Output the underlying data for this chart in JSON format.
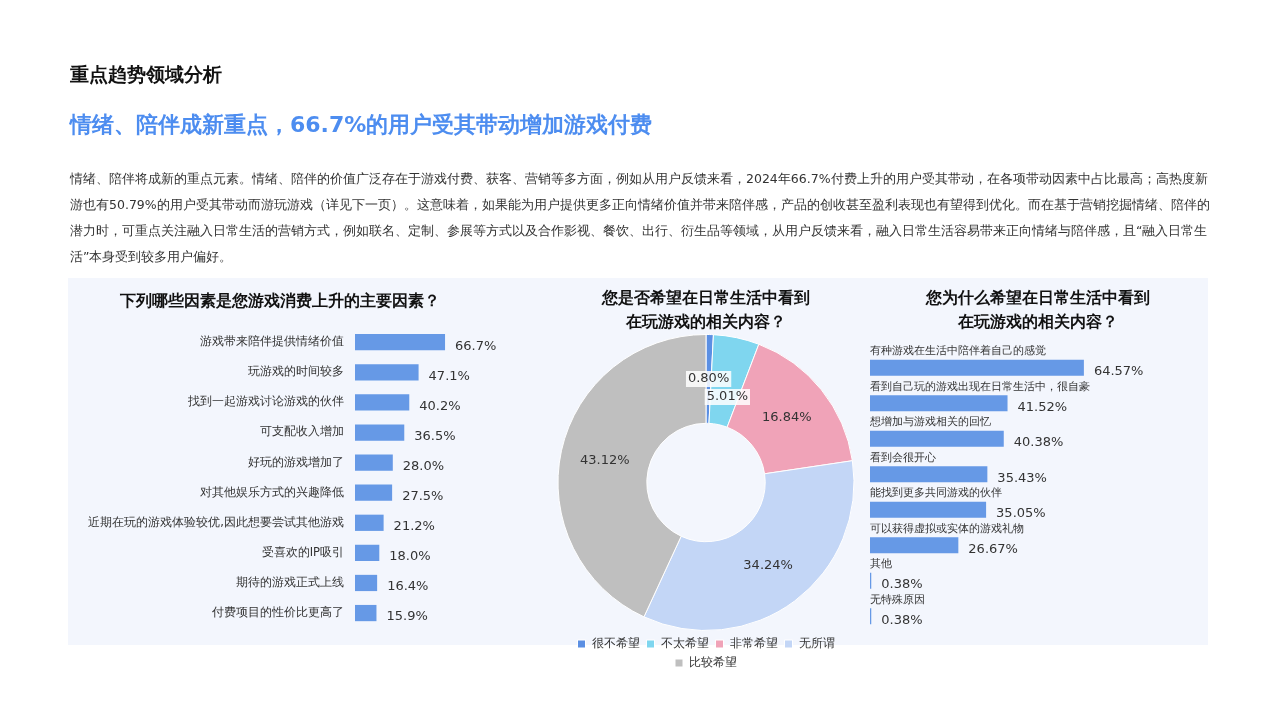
{
  "chart_data": [
    {
      "type": "other",
      "title": "重点趋势领域分析",
      "subtitle": "情绪、陪伴成新重点，66.7%的用户受其带动增加游戏付费",
      "annotations": [
        "情绪、陪伴将成新的重点元素。情绪、陪伴的价值广泛存在于游戏付费、获客、营销等多方面，例如从用户反馈来看，2024年66.7%付费上升的用户受其带动，在各项带动因素中占比最高；高热度新游也有50.79%的用户受其带动而游玩游戏（详见下一页）。这意味着，如果能为用户提供更多正向情绪价值并带来陪伴感，产品的创收甚至盈利表现也有望得到优化。而在基于营销挖掘情绪、陪伴的潜力时，可重点关注融入日常生活的营销方式，例如联名、定制、参展等方式以及合作影视、餐饮、出行、衍生品等领域，从用户反馈来看，融入日常生活容易带来正向情绪与陪伴感，且“融入日常生活”本身受到较多用户偏好。"
      ]
    },
    {
      "type": "bar",
      "orientation": "horizontal",
      "title": "下列哪些因素是您游戏消费上升的主要因素？",
      "categories": [
        "游戏带来陪伴提供情绪价值",
        "玩游戏的时间较多",
        "找到一起游戏讨论游戏的伙伴",
        "可支配收入增加",
        "好玩的游戏增加了",
        "对其他娱乐方式的兴趣降低",
        "近期在玩的游戏体验较优,因此想要尝试其他游戏",
        "受喜欢的IP吸引",
        "期待的游戏正式上线",
        "付费项目的性价比更高了"
      ],
      "values": [
        66.7,
        47.1,
        40.2,
        36.5,
        28.0,
        27.5,
        21.2,
        18.0,
        16.4,
        15.9
      ],
      "color": "#6699e6",
      "value_labels": [
        "66.7%",
        "47.1%",
        "40.2%",
        "36.5%",
        "28.0%",
        "27.5%",
        "21.2%",
        "18.0%",
        "16.4%",
        "15.9%"
      ],
      "grid": false,
      "legend": false,
      "tick_labels": "y"
    },
    {
      "type": "donut",
      "title": "您是否希望在日常生活中看到在玩游戏的相关内容？",
      "categories": [
        "很不希望",
        "不太希望",
        "非常希望",
        "无所谓",
        "比较希望"
      ],
      "values": [
        0.8,
        5.01,
        16.84,
        34.24,
        43.12
      ],
      "colors": [
        "#5b8fe3",
        "#7fd6ef",
        "#f0a3b8",
        "#c3d6f6",
        "#bfbfbf"
      ],
      "value_labels": [
        "0.80%",
        "5.01%",
        "16.84%",
        "34.24%",
        "43.12%"
      ],
      "legend": "bottom"
    },
    {
      "type": "bar",
      "orientation": "horizontal",
      "title": "您为什么希望在日常生活中看到在玩游戏的相关内容？",
      "categories": [
        "有种游戏在生活中陪伴着自己的感觉",
        "看到自己玩的游戏出现在日常生活中，很自豪",
        "想增加与游戏相关的回忆",
        "看到会很开心",
        "能找到更多共同游戏的伙伴",
        "可以获得虚拟或实体的游戏礼物",
        "其他",
        "无特殊原因"
      ],
      "values": [
        64.57,
        41.52,
        40.38,
        35.43,
        35.05,
        26.67,
        0.38,
        0.38
      ],
      "color": "#6699e6",
      "value_labels": [
        "64.57%",
        "41.52%",
        "40.38%",
        "35.43%",
        "35.05%",
        "26.67%",
        "0.38%",
        "0.38%"
      ],
      "grid": false,
      "legend": false,
      "tick_labels": "y"
    }
  ]
}
